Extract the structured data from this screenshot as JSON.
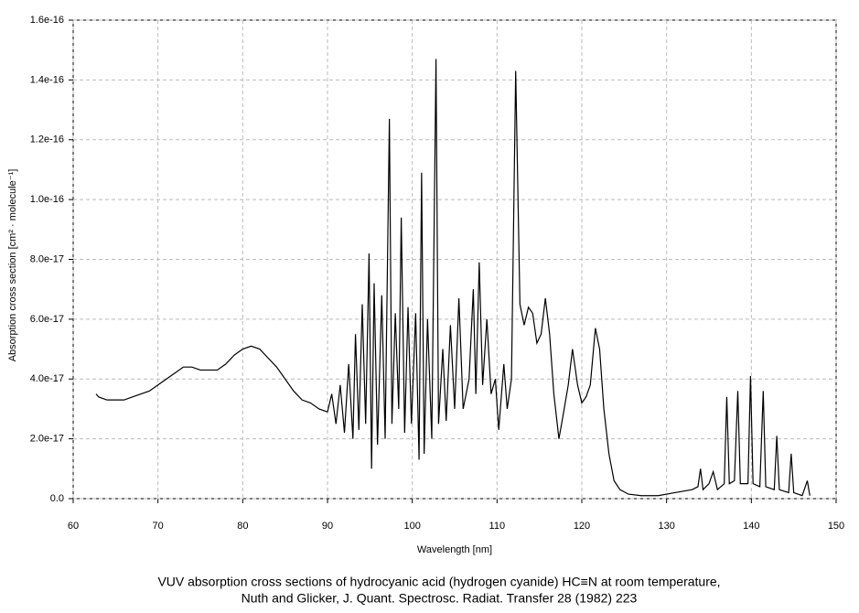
{
  "chart_data": {
    "type": "line",
    "x_label": "Wavelength [nm]",
    "y_label": "Absorption cross section [cm² · molecule⁻¹]",
    "caption": [
      "VUV absorption cross sections of hydrocyanic acid (hydrogen cyanide) HC≡N at room temperature,",
      "Nuth and Glicker, J. Quant. Spectrosc. Radiat. Transfer 28 (1982) 223"
    ],
    "xlim": [
      60,
      150
    ],
    "xticks": [
      60,
      70,
      80,
      90,
      100,
      110,
      120,
      130,
      140,
      150
    ],
    "ylim": [
      0,
      1.6e-16
    ],
    "yticks": [
      {
        "value": 0,
        "label": "0.0"
      },
      {
        "value": 2e-17,
        "label": "2.0e-17"
      },
      {
        "value": 4e-17,
        "label": "4.0e-17"
      },
      {
        "value": 6e-17,
        "label": "6.0e-17"
      },
      {
        "value": 8e-17,
        "label": "8.0e-17"
      },
      {
        "value": 1e-16,
        "label": "1.0e-16"
      },
      1.2e-16,
      1.4e-16,
      1.6e-16
    ],
    "grid": true,
    "series": [
      {
        "color": "#000000",
        "x": [
          62.7,
          63,
          64,
          65,
          66,
          67,
          68,
          69,
          70,
          71,
          72,
          73,
          74,
          75,
          76,
          77,
          78,
          79,
          80,
          81,
          82,
          83,
          84,
          85,
          86,
          87,
          88,
          89,
          90,
          90.5,
          91,
          91.5,
          92,
          92.5,
          93,
          93.3,
          93.7,
          94.1,
          94.5,
          94.9,
          95.2,
          95.5,
          95.9,
          96.4,
          96.8,
          97.3,
          97.6,
          98,
          98.4,
          98.7,
          99.1,
          99.5,
          99.9,
          100.4,
          100.8,
          101.1,
          101.4,
          101.8,
          102.3,
          102.8,
          103.1,
          103.6,
          104,
          104.5,
          105,
          105.5,
          106,
          106.7,
          107.2,
          107.5,
          107.9,
          108.3,
          108.8,
          109.3,
          109.8,
          110.2,
          110.8,
          111.2,
          111.7,
          112.2,
          112.7,
          113.2,
          113.7,
          114.2,
          114.7,
          115.2,
          115.7,
          116.2,
          116.7,
          117.3,
          117.8,
          118.4,
          118.9,
          119.5,
          120,
          120.5,
          121,
          121.6,
          122.1,
          122.6,
          123.2,
          123.8,
          124.5,
          125.5,
          127,
          129,
          131,
          133,
          133.7,
          134,
          134.3,
          135,
          135.5,
          136,
          136.8,
          137.1,
          137.4,
          138,
          138.4,
          138.7,
          139.6,
          139.9,
          140.2,
          141,
          141.4,
          141.7,
          142.7,
          143,
          143.3,
          144.4,
          144.7,
          145,
          146,
          146.6,
          146.9
        ],
        "values": [
          3.5e-17,
          3.4e-17,
          3.3e-17,
          3.3e-17,
          3.3e-17,
          3.4e-17,
          3.5e-17,
          3.6e-17,
          3.8e-17,
          4e-17,
          4.2e-17,
          4.4e-17,
          4.4e-17,
          4.3e-17,
          4.3e-17,
          4.3e-17,
          4.5e-17,
          4.8e-17,
          5e-17,
          5.1e-17,
          5e-17,
          4.7e-17,
          4.4e-17,
          4e-17,
          3.6e-17,
          3.3e-17,
          3.2e-17,
          3e-17,
          2.9e-17,
          3.5e-17,
          2.5e-17,
          3.8e-17,
          2.2e-17,
          4.5e-17,
          2e-17,
          5.5e-17,
          2.3e-17,
          6.5e-17,
          2.5e-17,
          8.2e-17,
          1e-17,
          7.2e-17,
          1.8e-17,
          6.8e-17,
          2e-17,
          1.27e-16,
          2.5e-17,
          6.2e-17,
          3e-17,
          9.4e-17,
          2.2e-17,
          6.4e-17,
          2.5e-17,
          6.2e-17,
          1.3e-17,
          1.09e-16,
          1.5e-17,
          6e-17,
          2e-17,
          1.47e-16,
          2.5e-17,
          5e-17,
          2.6e-17,
          5.8e-17,
          3e-17,
          6.7e-17,
          3e-17,
          4e-17,
          7e-17,
          3.5e-17,
          7.9e-17,
          3.8e-17,
          6e-17,
          3.5e-17,
          4e-17,
          2.3e-17,
          4.5e-17,
          3e-17,
          4e-17,
          1.43e-16,
          6.5e-17,
          5.8e-17,
          6.4e-17,
          6.2e-17,
          5.2e-17,
          5.5e-17,
          6.7e-17,
          5.5e-17,
          3.5e-17,
          2e-17,
          2.8e-17,
          3.8e-17,
          5e-17,
          3.8e-17,
          3.2e-17,
          3.4e-17,
          3.8e-17,
          5.7e-17,
          5e-17,
          3e-17,
          1.5e-17,
          6e-18,
          3e-18,
          1.5e-18,
          1e-18,
          1e-18,
          2e-18,
          3e-18,
          4e-18,
          1e-17,
          3e-18,
          5e-18,
          9e-18,
          3e-18,
          5e-18,
          3.4e-17,
          5e-18,
          6e-18,
          3.6e-17,
          5e-18,
          5e-18,
          4.1e-17,
          5e-18,
          4e-18,
          3.6e-17,
          4e-18,
          3e-18,
          2.1e-17,
          3e-18,
          2e-18,
          1.5e-17,
          2e-18,
          1e-18,
          6e-18,
          1e-18
        ]
      }
    ]
  }
}
